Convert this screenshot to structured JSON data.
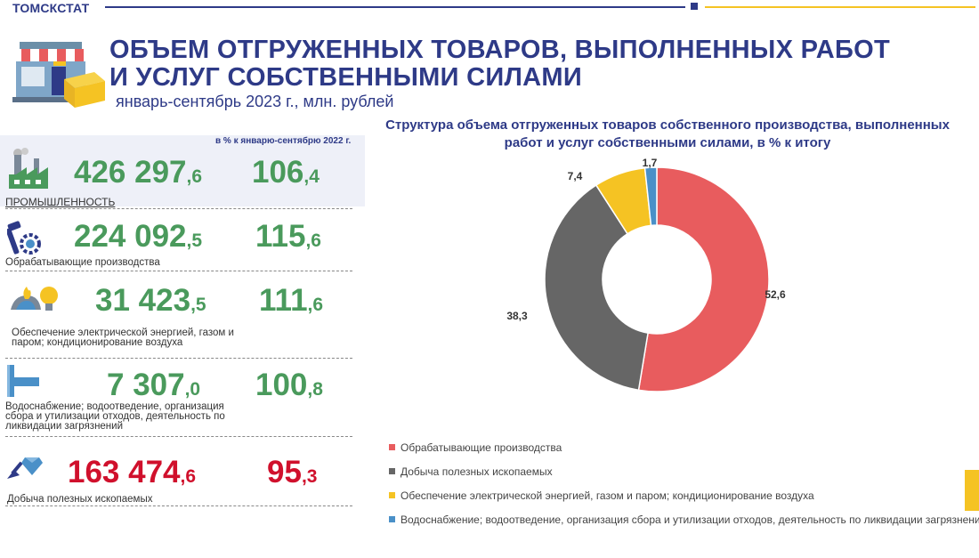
{
  "header": {
    "brand": "ТОМСКСТАТ",
    "title_line1": "ОБЪЕМ ОТГРУЖЕННЫХ ТОВАРОВ, ВЫПОЛНЕННЫХ РАБОТ",
    "title_line2": "И УСЛУГ СОБСТВЕННЫМИ СИЛАМИ",
    "subtitle": "январь-сентябрь 2023 г., млн. рублей"
  },
  "column_note": "в % к январю-сентябрю 2022 г.",
  "indicators": [
    {
      "label": "ПРОМЫШЛЕННОСТЬ",
      "value_int": "426 297",
      "value_dec": ",6",
      "pct_int": "106",
      "pct_dec": ",4",
      "icon": "factory-icon"
    },
    {
      "label": "Обрабатывающие производства",
      "value_int": "224 092",
      "value_dec": ",5",
      "pct_int": "115",
      "pct_dec": ",6",
      "icon": "tools-gear-icon"
    },
    {
      "label": "Обеспечение электрической энергией, газом и паром; кондиционирование воздуха",
      "value_int": "31 423",
      "value_dec": ",5",
      "pct_int": "111",
      "pct_dec": ",6",
      "icon": "gas-bulb-icon"
    },
    {
      "label": "Водоснабжение; водоотведение, организация сбора и утилизации отходов, деятельность по ликвидации загрязнений",
      "value_int": "7 307",
      "value_dec": ",0",
      "pct_int": "100",
      "pct_dec": ",8",
      "icon": "water-pipe-icon"
    },
    {
      "label": "Добыча полезных ископаемых",
      "value_int": "163 474",
      "value_dec": ",6",
      "pct_int": "95",
      "pct_dec": ",3",
      "icon": "shovel-diamond-icon"
    }
  ],
  "colors": {
    "brand_blue": "#2e3a87",
    "accent_yellow": "#f5c323",
    "growth_green": "#4a9a5c",
    "decline_red": "#d0102c"
  },
  "chart_data": {
    "type": "pie",
    "title": "Структура объема отгруженных товаров собственного  производства, выполненных работ и услуг собственными силами,  в % к итогу",
    "categories": [
      "Обрабатывающие производства",
      "Добыча полезных ископаемых",
      "Обеспечение электрической энергией, газом и паром; кондиционирование воздуха",
      "Водоснабжение; водоотведение, организация сбора и утилизации отходов, деятельность по ликвидации загрязнений"
    ],
    "values": [
      52.6,
      38.3,
      7.4,
      1.7
    ],
    "value_labels": [
      "52,6",
      "38,3",
      "7,4",
      "1,7"
    ],
    "colors": [
      "#e85c5e",
      "#666666",
      "#f5c323",
      "#4a90c8"
    ],
    "donut": true,
    "legend_position": "bottom"
  }
}
